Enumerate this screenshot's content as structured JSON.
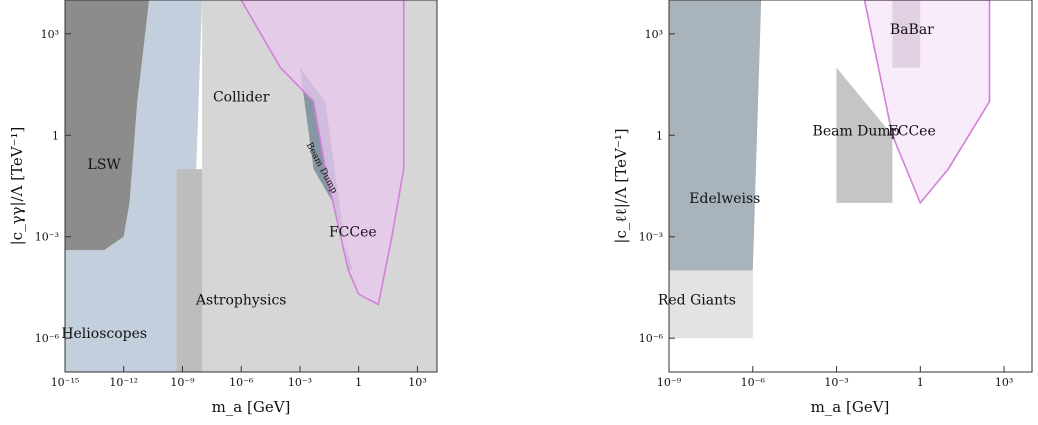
{
  "chart_data": [
    {
      "type": "area",
      "xlabel": "m_a [GeV]",
      "ylabel": "|c_γγ|/Λ [TeV⁻¹]",
      "x_scale": "log",
      "y_scale": "log",
      "xlim": [
        1e-15,
        10000.0
      ],
      "ylim": [
        1e-07,
        10000.0
      ],
      "x_ticks": [
        {
          "value": 1e-15,
          "label": "10⁻¹⁵"
        },
        {
          "value": 1e-12,
          "label": "10⁻¹²"
        },
        {
          "value": 1e-09,
          "label": "10⁻⁹"
        },
        {
          "value": 1e-06,
          "label": "10⁻⁶"
        },
        {
          "value": 0.001,
          "label": "10⁻³"
        },
        {
          "value": 1,
          "label": "1"
        },
        {
          "value": 1000.0,
          "label": "10³"
        }
      ],
      "y_ticks": [
        {
          "value": 1e-06,
          "label": "10⁻⁶"
        },
        {
          "value": 0.001,
          "label": "10⁻³"
        },
        {
          "value": 1,
          "label": "1"
        },
        {
          "value": 1000.0,
          "label": "10³"
        }
      ],
      "grid": false,
      "series": [
        {
          "name": "LSW",
          "color": "#8c8c8c",
          "points": [
            [
              1e-15,
              10000.0
            ],
            [
              2e-11,
              10000.0
            ],
            [
              5e-12,
              10.0
            ],
            [
              2e-12,
              0.01
            ],
            [
              1e-12,
              0.001
            ],
            [
              1e-13,
              0.0004
            ],
            [
              1e-15,
              0.0004
            ]
          ]
        },
        {
          "name": "Helioscopes",
          "color": "#c3cfdc",
          "points": [
            [
              1e-15,
              0.0004
            ],
            [
              1e-13,
              0.0004
            ],
            [
              1e-12,
              0.001
            ],
            [
              2e-12,
              0.01
            ],
            [
              5e-12,
              10.0
            ],
            [
              2e-11,
              10000.0
            ],
            [
              1e-08,
              10000.0
            ],
            [
              5e-09,
              0.1
            ],
            [
              1e-09,
              0.0001
            ],
            [
              5e-10,
              1e-06
            ],
            [
              1e-09,
              1e-07
            ],
            [
              1e-15,
              1e-07
            ]
          ]
        },
        {
          "name": "Astrophysics",
          "color": "#bdbdbd",
          "points": [
            [
              5e-10,
              0.1
            ],
            [
              0.5,
              0.1
            ],
            [
              0.5,
              1e-05
            ],
            [
              0.02,
              1e-06
            ],
            [
              0.001,
              1e-07
            ],
            [
              5e-10,
              1e-07
            ]
          ]
        },
        {
          "name": "Collider",
          "color": "#d6d6d6",
          "points": [
            [
              1e-08,
              10000.0
            ],
            [
              10000.0,
              10000.0
            ],
            [
              10000.0,
              1e-07
            ],
            [
              1e-08,
              1e-07
            ],
            [
              1e-08,
              0.1
            ],
            [
              1e-08,
              10000.0
            ]
          ]
        },
        {
          "name": "Beam Dump",
          "color": "#8796a3",
          "points": [
            [
              0.001,
              100.0
            ],
            [
              0.02,
              10.0
            ],
            [
              0.3,
              0.0001
            ],
            [
              0.5,
              0.0001
            ],
            [
              0.05,
              0.01
            ],
            [
              0.005,
              0.1
            ],
            [
              0.001,
              100.0
            ]
          ]
        },
        {
          "name": "FCCee",
          "color": "#e8c8ef",
          "border": "#d47fd9",
          "points": [
            [
              1e-06,
              10000.0
            ],
            [
              200.0,
              10000.0
            ],
            [
              200.0,
              0.1
            ],
            [
              50,
              0.001
            ],
            [
              10,
              1e-05
            ],
            [
              1,
              2e-05
            ],
            [
              0.3,
              0.0001
            ],
            [
              0.02,
              0.1
            ],
            [
              0.005,
              10.0
            ],
            [
              0.0001,
              100.0
            ],
            [
              1e-06,
              10000.0
            ]
          ]
        }
      ],
      "labels": [
        {
          "text": "LSW",
          "x": 1e-13,
          "y": 0.1
        },
        {
          "text": "Collider",
          "x": 1e-06,
          "y": 10.0
        },
        {
          "text": "Beam Dump",
          "x": 0.01,
          "y": 0.1
        },
        {
          "text": "FCCee",
          "x": 0.5,
          "y": 0.001
        },
        {
          "text": "Astrophysics",
          "x": 1e-06,
          "y": 1e-05
        },
        {
          "text": "Helioscopes",
          "x": 1e-13,
          "y": 1e-06
        }
      ]
    },
    {
      "type": "area",
      "xlabel": "m_a [GeV]",
      "ylabel": "|c_ℓℓ|/Λ [TeV⁻¹]",
      "x_scale": "log",
      "y_scale": "log",
      "xlim": [
        1e-09,
        10000.0
      ],
      "ylim": [
        1e-07,
        10000.0
      ],
      "x_ticks": [
        {
          "value": 1e-09,
          "label": "10⁻⁹"
        },
        {
          "value": 1e-06,
          "label": "10⁻⁶"
        },
        {
          "value": 0.001,
          "label": "10⁻³"
        },
        {
          "value": 1,
          "label": "1"
        },
        {
          "value": 1000.0,
          "label": "10³"
        }
      ],
      "y_ticks": [
        {
          "value": 1e-06,
          "label": "10⁻⁶"
        },
        {
          "value": 0.001,
          "label": "10⁻³"
        },
        {
          "value": 1,
          "label": "1"
        },
        {
          "value": 1000.0,
          "label": "10³"
        }
      ],
      "grid": false,
      "series": [
        {
          "name": "Red Giants",
          "color": "#e3e3e3",
          "points": [
            [
              1e-09,
              0.0001
            ],
            [
              1e-06,
              0.0001
            ],
            [
              1e-06,
              1e-06
            ],
            [
              1e-09,
              1e-06
            ]
          ]
        },
        {
          "name": "Edelweiss",
          "color": "#a9b3bb",
          "points": [
            [
              1e-09,
              10000.0
            ],
            [
              2e-06,
              10000.0
            ],
            [
              1e-06,
              0.0001
            ],
            [
              1e-09,
              0.0001
            ]
          ]
        },
        {
          "name": "Beam Dump",
          "color": "#c5c5c5",
          "points": [
            [
              0.001,
              100.0
            ],
            [
              0.1,
              1.0
            ],
            [
              0.1,
              0.01
            ],
            [
              0.001,
              0.01
            ]
          ]
        },
        {
          "name": "BaBar",
          "color": "#a292a5",
          "points": [
            [
              0.1,
              10000.0
            ],
            [
              1,
              10000.0
            ],
            [
              1,
              100.0
            ],
            [
              0.1,
              100.0
            ]
          ]
        },
        {
          "name": "FCCee",
          "color": "#f6e6f8",
          "border": "#d47fd9",
          "points": [
            [
              0.01,
              10000.0
            ],
            [
              300.0,
              10000.0
            ],
            [
              300.0,
              10.0
            ],
            [
              10,
              0.1
            ],
            [
              1,
              0.01
            ],
            [
              0.1,
              1
            ],
            [
              0.01,
              10000.0
            ]
          ]
        }
      ],
      "labels": [
        {
          "text": "BaBar",
          "x": 0.5,
          "y": 1000.0
        },
        {
          "text": "Beam Dump",
          "x": 0.005,
          "y": 1
        },
        {
          "text": "FCCee",
          "x": 0.5,
          "y": 1
        },
        {
          "text": "Edelweiss",
          "x": 1e-07,
          "y": 0.01
        },
        {
          "text": "Red Giants",
          "x": 1e-08,
          "y": 1e-05
        }
      ]
    }
  ]
}
